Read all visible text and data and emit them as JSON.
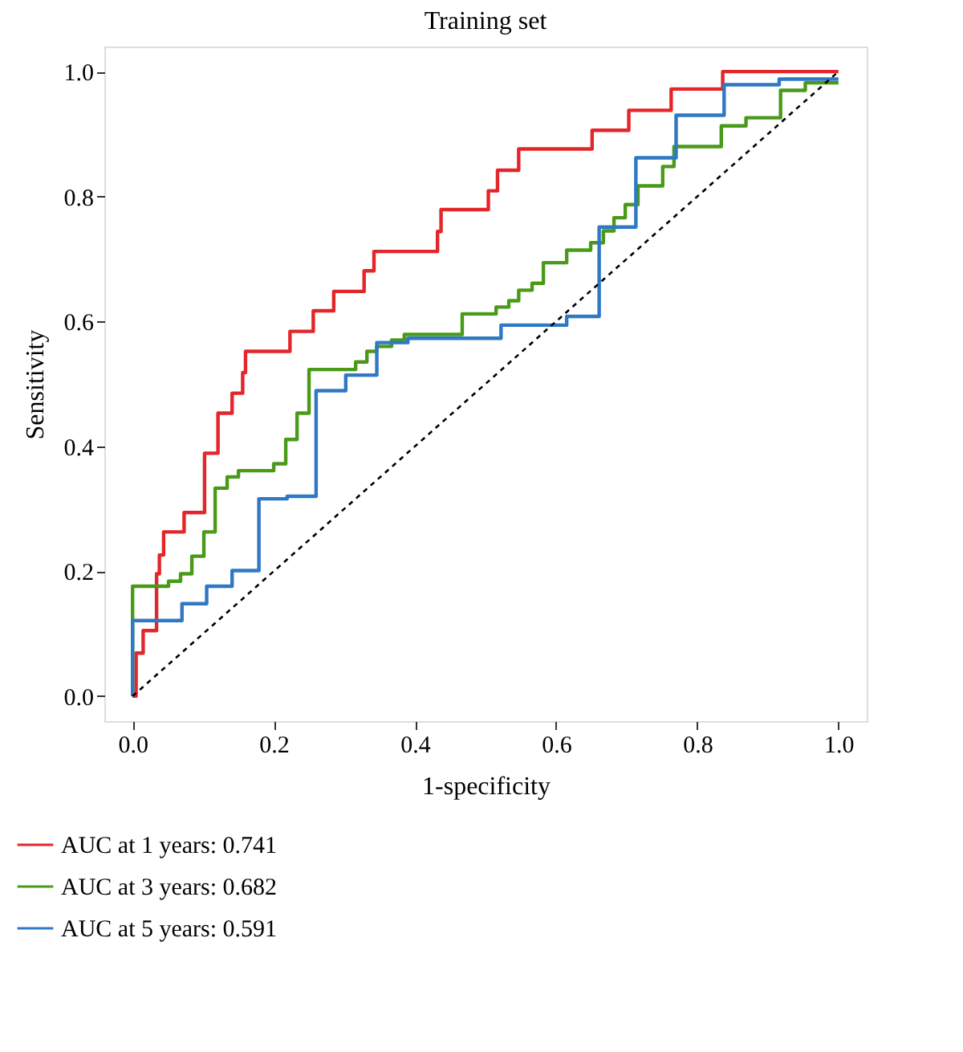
{
  "chart_data": {
    "type": "step",
    "title": "Training set",
    "xlabel": "1-specificity",
    "ylabel": "Sensitivity",
    "xlim": [
      -0.04,
      1.04
    ],
    "ylim": [
      -0.04,
      1.04
    ],
    "xticks": [
      {
        "value": 0,
        "label": "0.0"
      },
      {
        "value": 0.2,
        "label": "0.2"
      },
      {
        "value": 0.4,
        "label": "0.4"
      },
      {
        "value": 0.6,
        "label": "0.6"
      },
      {
        "value": 0.8,
        "label": "0.8"
      },
      {
        "value": 1,
        "label": "1.0"
      }
    ],
    "yticks": [
      {
        "value": 0,
        "label": "0.0"
      },
      {
        "value": 0.2,
        "label": "0.2"
      },
      {
        "value": 0.4,
        "label": "0.4"
      },
      {
        "value": 0.6,
        "label": "0.6"
      },
      {
        "value": 0.8,
        "label": "0.8"
      },
      {
        "value": 1,
        "label": "1.0"
      }
    ],
    "grid": false,
    "legend": "bottom left",
    "marker": "none",
    "series": [
      {
        "name": "AUC at 1 years: 0.741",
        "color": "#e3262a",
        "line_style": "solid",
        "x": [
          0,
          0.005,
          0.015,
          0.034,
          0.038,
          0.044,
          0.073,
          0.102,
          0.121,
          0.141,
          0.156,
          0.16,
          0.223,
          0.256,
          0.285,
          0.328,
          0.342,
          0.432,
          0.437,
          0.504,
          0.517,
          0.547,
          0.651,
          0.703,
          0.763,
          0.836,
          1.0
        ],
        "values": [
          0,
          0.069,
          0.105,
          0.196,
          0.226,
          0.263,
          0.294,
          0.389,
          0.453,
          0.485,
          0.518,
          0.552,
          0.584,
          0.617,
          0.648,
          0.681,
          0.712,
          0.744,
          0.779,
          0.809,
          0.842,
          0.876,
          0.906,
          0.938,
          0.972,
          1.0,
          1.0
        ]
      },
      {
        "name": "AUC at 3 years: 0.682",
        "color": "#4a9a1a",
        "line_style": "solid",
        "x": [
          0,
          0,
          0.051,
          0.068,
          0.084,
          0.101,
          0.117,
          0.134,
          0.15,
          0.2,
          0.217,
          0.233,
          0.25,
          0.316,
          0.332,
          0.346,
          0.367,
          0.385,
          0.467,
          0.515,
          0.533,
          0.547,
          0.566,
          0.582,
          0.615,
          0.649,
          0.667,
          0.682,
          0.698,
          0.716,
          0.751,
          0.767,
          0.834,
          0.869,
          0.918,
          0.953,
          1.0
        ],
        "values": [
          0,
          0.176,
          0.184,
          0.196,
          0.224,
          0.263,
          0.333,
          0.351,
          0.361,
          0.372,
          0.411,
          0.453,
          0.523,
          0.535,
          0.552,
          0.56,
          0.57,
          0.579,
          0.612,
          0.623,
          0.633,
          0.65,
          0.661,
          0.694,
          0.714,
          0.726,
          0.745,
          0.766,
          0.787,
          0.817,
          0.848,
          0.88,
          0.913,
          0.926,
          0.97,
          0.982,
          0.982
        ]
      },
      {
        "name": "AUC at 5 years: 0.591",
        "color": "#2f78c4",
        "line_style": "solid",
        "x": [
          0,
          0,
          0.07,
          0.105,
          0.141,
          0.179,
          0.219,
          0.26,
          0.302,
          0.346,
          0.39,
          0.522,
          0.615,
          0.661,
          0.713,
          0.77,
          0.838,
          0.916,
          1.0
        ],
        "values": [
          0,
          0.121,
          0.148,
          0.176,
          0.201,
          0.316,
          0.32,
          0.489,
          0.514,
          0.566,
          0.573,
          0.594,
          0.608,
          0.751,
          0.862,
          0.93,
          0.979,
          0.988,
          0.988
        ]
      },
      {
        "type": "line",
        "color": "#000000",
        "line_style": "dashed",
        "x": [
          0,
          1
        ],
        "values": [
          0,
          1
        ]
      }
    ]
  }
}
